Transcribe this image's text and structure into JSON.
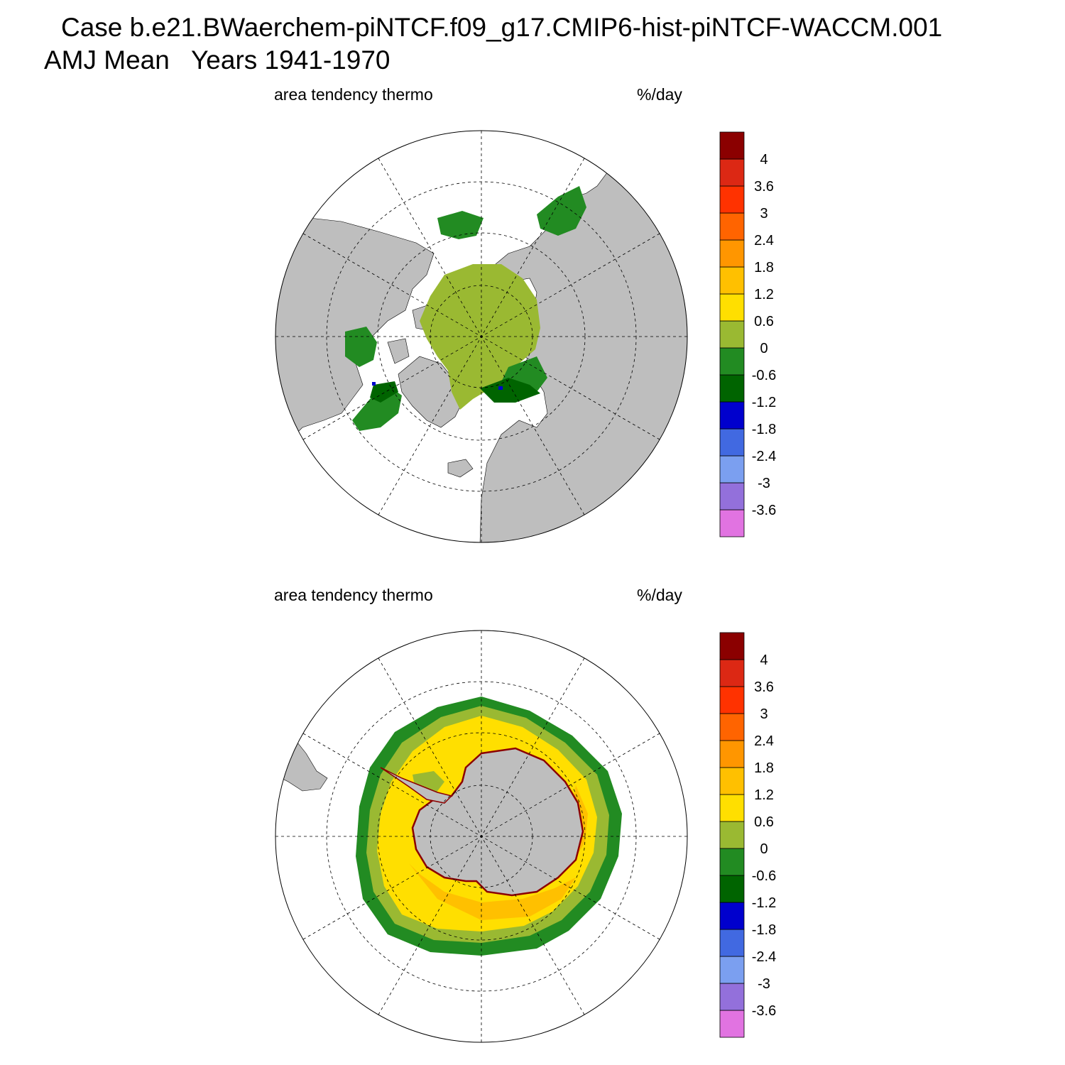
{
  "header": {
    "case_line": "Case b.e21.BWaerchem-piNTCF.f09_g17.CMIP6-hist-piNTCF-WACCM.001",
    "period_line": "AMJ Mean   Years 1941-1970"
  },
  "colors": {
    "land": "#bebebe",
    "legend_levels": [
      "#e173e1",
      "#9370db",
      "#7b9ff0",
      "#4169e1",
      "#0000cd",
      "#006400",
      "#228b22",
      "#9ab932",
      "#ffdf00",
      "#ffc000",
      "#ff9600",
      "#ff6400",
      "#ff3200",
      "#dc2814",
      "#8b0000"
    ]
  },
  "panels": [
    {
      "id": "north",
      "variable_label": "area tendency thermo",
      "units_label": "%/day",
      "hemisphere": "north-polar-stereographic",
      "colorbar_labels": [
        "-3.6",
        "-3",
        "-2.4",
        "-1.8",
        "-1.2",
        "-0.6",
        "0",
        "0.6",
        "1.2",
        "1.8",
        "2.4",
        "3",
        "3.6",
        "4"
      ]
    },
    {
      "id": "south",
      "variable_label": "area tendency thermo",
      "units_label": "%/day",
      "hemisphere": "south-polar-stereographic",
      "colorbar_labels": [
        "-3.6",
        "-3",
        "-2.4",
        "-1.8",
        "-1.2",
        "-0.6",
        "0",
        "0.6",
        "1.2",
        "1.8",
        "2.4",
        "3",
        "3.6",
        "4"
      ]
    }
  ]
}
